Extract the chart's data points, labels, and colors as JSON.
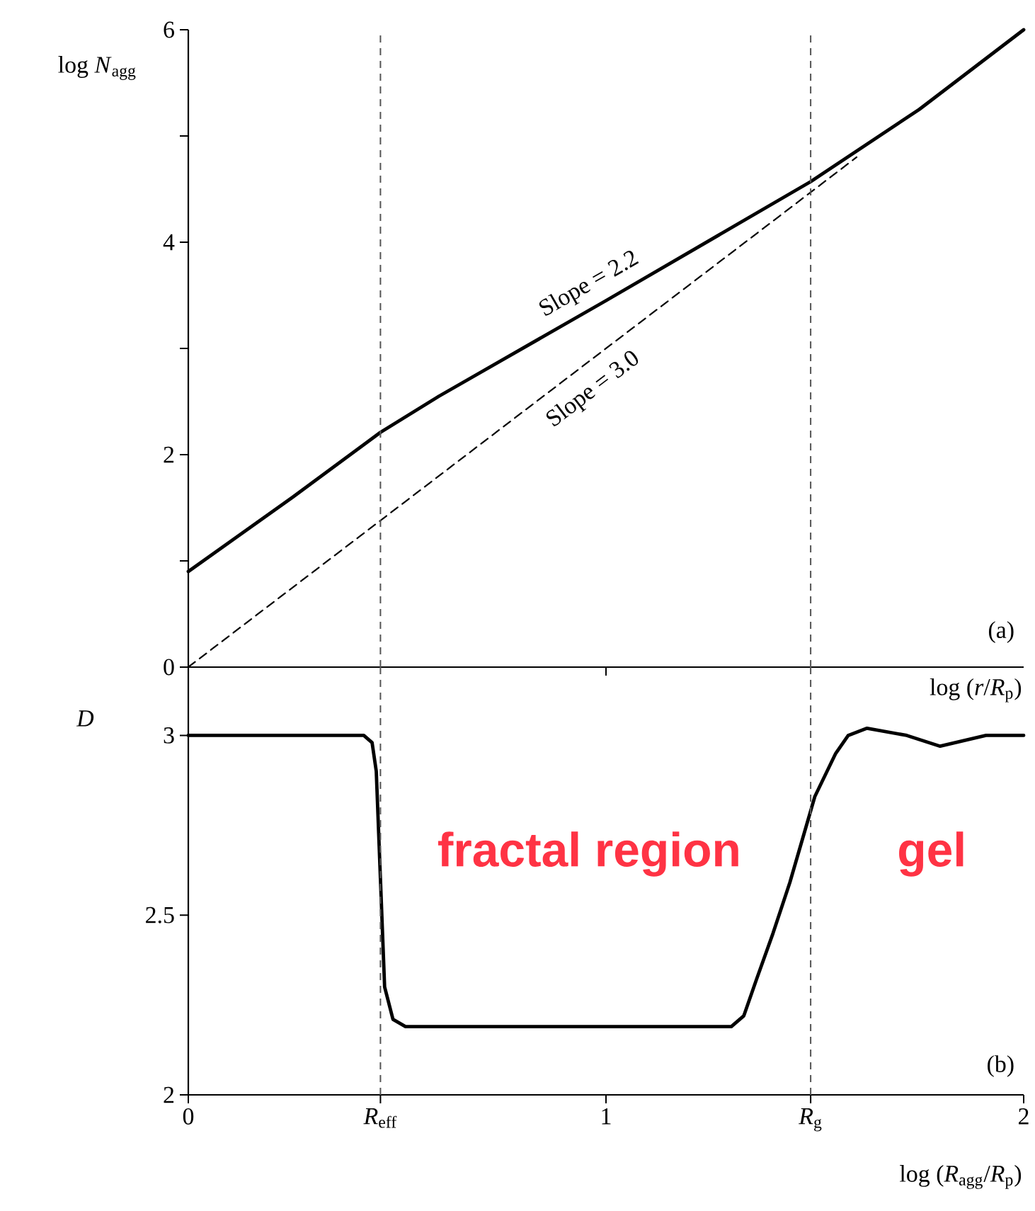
{
  "chart_data": [
    {
      "type": "line",
      "ylabel": "log *N*$_{agg}$",
      "xlabel": "log (*r*/*R*$_{p}$)",
      "xlim": [
        0,
        2
      ],
      "ylim": [
        0,
        6
      ],
      "xticks": [
        {
          "value": 1,
          "label": null
        }
      ],
      "yticks": [
        0,
        {
          "value": 1,
          "label": null
        },
        2,
        {
          "value": 3,
          "label": null
        },
        4,
        {
          "value": 5,
          "label": null
        },
        6
      ],
      "tick_labels": "y",
      "series": [
        {
          "color": "#000000",
          "line_style": "solid",
          "x": [
            0,
            0.25,
            0.46,
            0.6,
            1.0,
            1.49,
            1.75,
            2.0
          ],
          "values": [
            0.9,
            1.6,
            2.21,
            2.55,
            3.45,
            4.57,
            5.25,
            6.0
          ]
        },
        {
          "color": "#000000",
          "line_style": "dashed",
          "x": [
            0,
            1.6
          ],
          "values": [
            0,
            4.8
          ]
        }
      ],
      "ref_lines": [
        {
          "axis": "x",
          "value": 0.46,
          "color": "#555555",
          "line_style": "dashed"
        },
        {
          "axis": "x",
          "value": 1.49,
          "color": "#555555",
          "line_style": "dashed"
        }
      ],
      "annotations": [
        "Slope = 2.2",
        "Slope = 3.0",
        "(a)"
      ]
    },
    {
      "type": "line",
      "ylabel": "D",
      "xlabel": "log (*R*$_{agg}$/*R*$_{p}$)",
      "xlim": [
        0,
        2
      ],
      "ylim": [
        2,
        3.19
      ],
      "xticks": [
        0,
        {
          "value": 0.46,
          "label": "*R*$_{eff}$"
        },
        1,
        {
          "value": 1.49,
          "label": "*R*$_{g}$"
        },
        2
      ],
      "yticks": [
        2,
        2.5,
        3
      ],
      "series": [
        {
          "color": "#000000",
          "line_style": "solid",
          "x": [
            0,
            0.42,
            0.44,
            0.45,
            0.46,
            0.47,
            0.49,
            0.52,
            1.3,
            1.33,
            1.36,
            1.4,
            1.44,
            1.5,
            1.55,
            1.58,
            1.625,
            1.72,
            1.8,
            1.91,
            2.0
          ],
          "values": [
            3.0,
            3.0,
            2.98,
            2.9,
            2.6,
            2.3,
            2.21,
            2.19,
            2.19,
            2.22,
            2.32,
            2.45,
            2.59,
            2.83,
            2.95,
            3.0,
            3.02,
            3.0,
            2.97,
            3.0,
            3.0
          ]
        }
      ],
      "ref_lines": [
        {
          "axis": "x",
          "value": 0.46,
          "color": "#555555",
          "line_style": "dashed"
        },
        {
          "axis": "x",
          "value": 1.49,
          "color": "#555555",
          "line_style": "dashed"
        }
      ],
      "annotations": [
        "fractal region",
        "gel",
        "(b)"
      ]
    }
  ]
}
